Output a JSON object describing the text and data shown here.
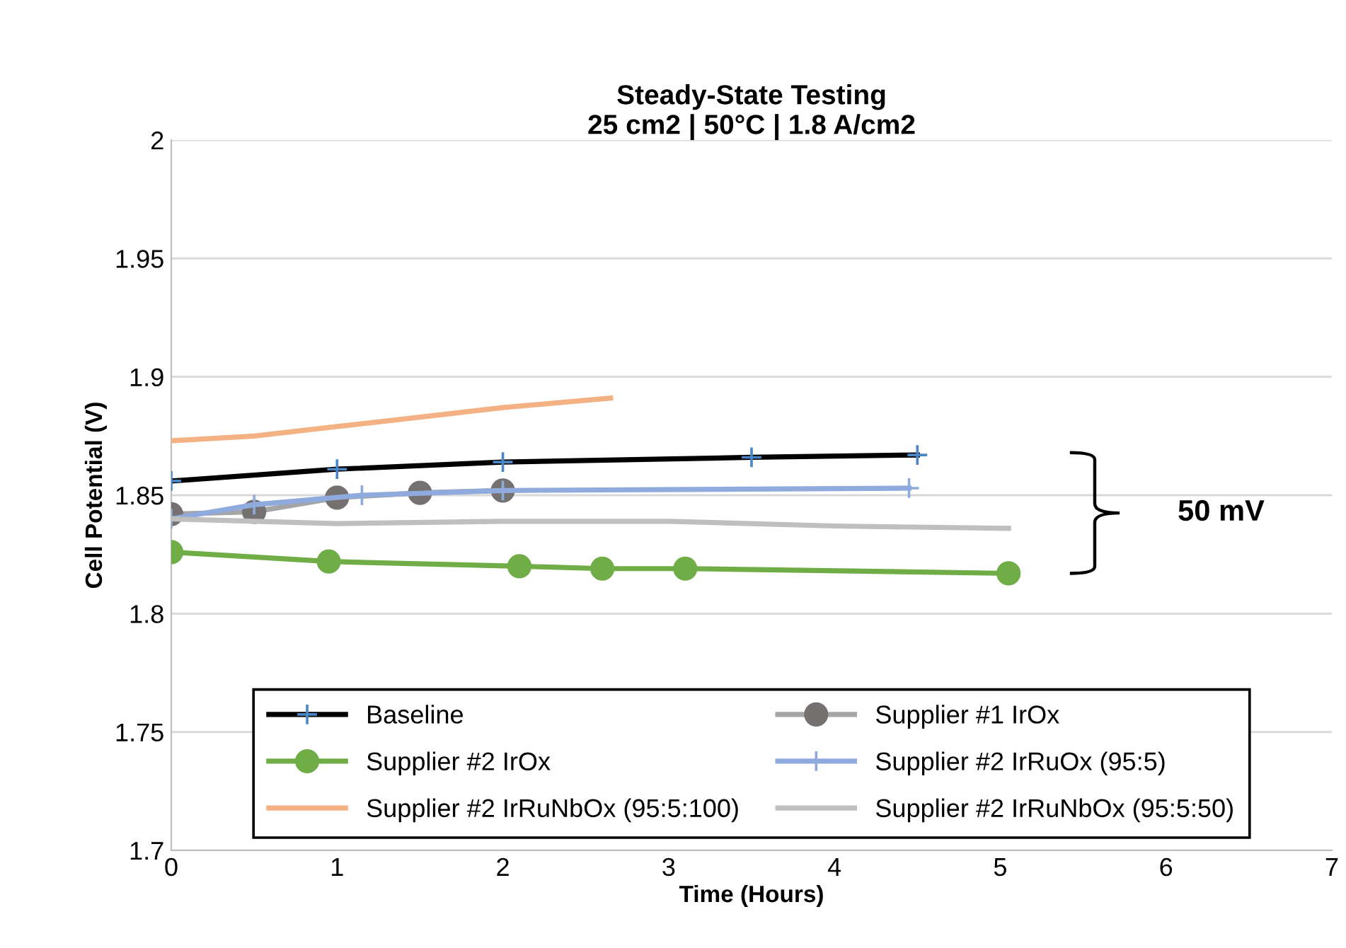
{
  "chart_data": {
    "type": "line",
    "title": "Steady-State Testing\n25 cm2 | 50°C | 1.8 A/cm2",
    "xlabel": "Time (Hours)",
    "ylabel": "Cell Potential (V)",
    "xlim": [
      0,
      7
    ],
    "xticks": [
      0,
      1,
      2,
      3,
      4,
      5,
      6,
      7
    ],
    "ylim": [
      1.7,
      2.0
    ],
    "yticks": [
      1.7,
      1.75,
      1.8,
      1.85,
      1.9,
      1.95,
      2
    ],
    "grid": "y",
    "legend": "bottom",
    "annotations": [
      "50 mV"
    ],
    "series": [
      {
        "name": "Baseline",
        "color": "#000000",
        "marker": "cross",
        "x": [
          0,
          1,
          2,
          3.5,
          4.5
        ],
        "values": [
          1.856,
          1.861,
          1.864,
          1.866,
          1.867
        ]
      },
      {
        "name": "Supplier #1 IrOx",
        "color": "#a5a5a5",
        "marker": "circle",
        "x": [
          0,
          0.5,
          1,
          1.5,
          2
        ],
        "values": [
          1.842,
          1.843,
          1.849,
          1.851,
          1.852
        ]
      },
      {
        "name": "Supplier #2 IrOx",
        "color": "#70ad47",
        "marker": "circle",
        "x": [
          0,
          0.95,
          2.1,
          2.6,
          3.1,
          5.05
        ],
        "values": [
          1.826,
          1.822,
          1.82,
          1.819,
          1.819,
          1.817
        ]
      },
      {
        "name": "Supplier #2 IrRuOx (95:5)",
        "color": "#8faadc",
        "marker": "cross",
        "x": [
          0,
          0.5,
          1.15,
          2,
          4.45
        ],
        "values": [
          1.84,
          1.846,
          1.85,
          1.852,
          1.853
        ]
      },
      {
        "name": "Supplier #2 IrRuNbOx (95:5:100)",
        "color": "#f4b183",
        "x": [
          0,
          0.5,
          1,
          1.5,
          2,
          2.65
        ],
        "values": [
          1.873,
          1.875,
          1.879,
          1.883,
          1.887,
          1.891
        ]
      },
      {
        "name": "Supplier #2 IrRuNbOx (95:5:50)",
        "color": "#bfbfbf",
        "x": [
          0,
          1,
          2,
          3,
          4,
          5.05
        ],
        "values": [
          1.84,
          1.838,
          1.839,
          1.839,
          1.837,
          1.836
        ]
      }
    ]
  }
}
